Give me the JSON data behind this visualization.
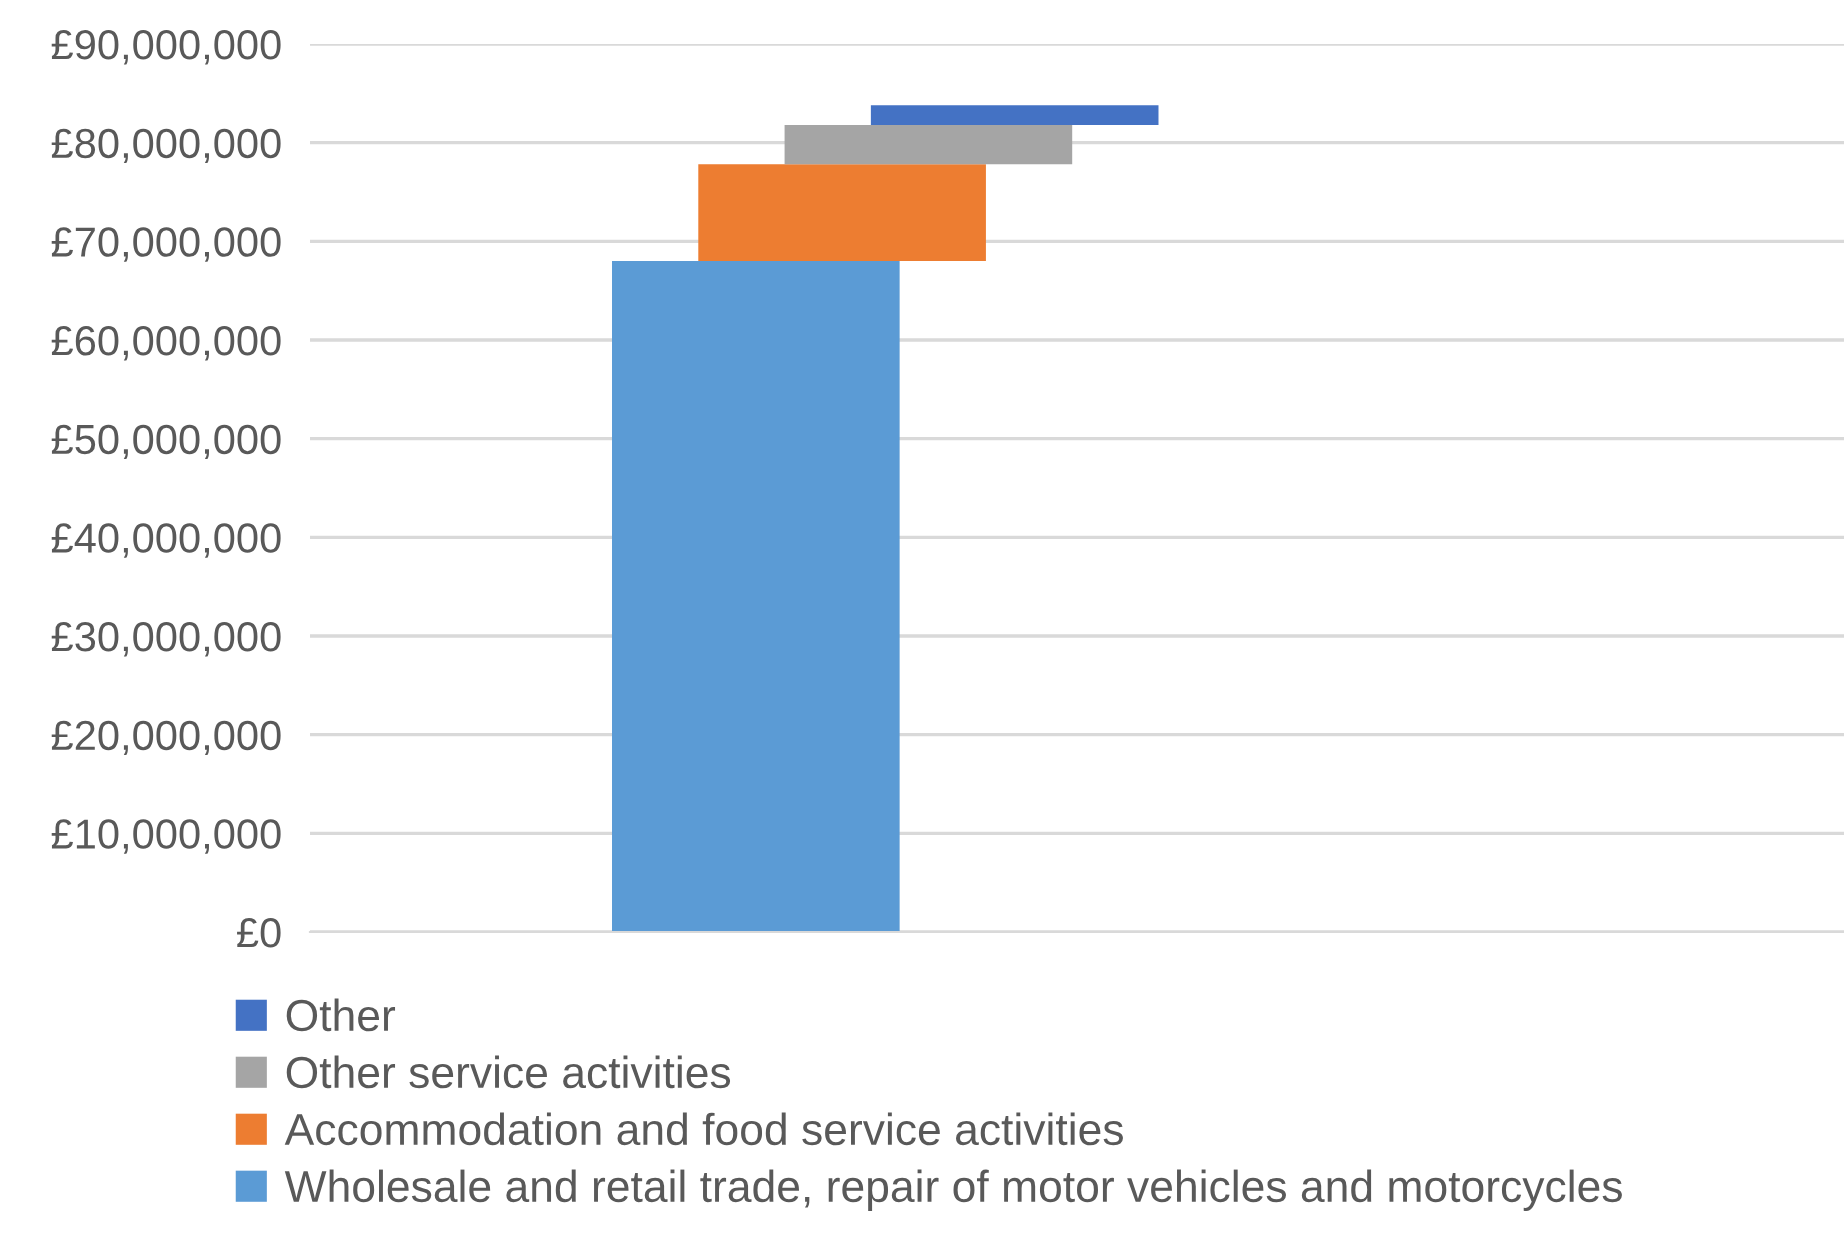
{
  "chart_data": {
    "type": "bar",
    "categories": [
      null
    ],
    "series": [
      {
        "name": "Wholesale and retail trade, repair of motor vehicles and motorcycles",
        "color": "#5b9bd5",
        "values": [
          68000000
        ],
        "base": [
          0
        ]
      },
      {
        "name": "Accommodation and food service activities",
        "color": "#ed7d31",
        "values": [
          9800000
        ],
        "base": [
          68000000
        ]
      },
      {
        "name": "Other service activities",
        "color": "#a5a5a5",
        "values": [
          4000000
        ],
        "base": [
          77800000
        ]
      },
      {
        "name": "Other",
        "color": "#4472c4",
        "values": [
          2000000
        ],
        "base": [
          81800000
        ]
      }
    ],
    "ylim": [
      0,
      90000000
    ],
    "yticks": [
      {
        "value": 0,
        "label": "£0"
      },
      {
        "value": 10000000,
        "label": "£10,000,000"
      },
      {
        "value": 20000000,
        "label": "£20,000,000"
      },
      {
        "value": 30000000,
        "label": "£30,000,000"
      },
      {
        "value": 40000000,
        "label": "£40,000,000"
      },
      {
        "value": 50000000,
        "label": "£50,000,000"
      },
      {
        "value": 60000000,
        "label": "£60,000,000"
      },
      {
        "value": 70000000,
        "label": "£70,000,000"
      },
      {
        "value": 80000000,
        "label": "£80,000,000"
      },
      {
        "value": 90000000,
        "label": "£90,000,000"
      }
    ],
    "grid": "y",
    "legend": "bottom"
  }
}
